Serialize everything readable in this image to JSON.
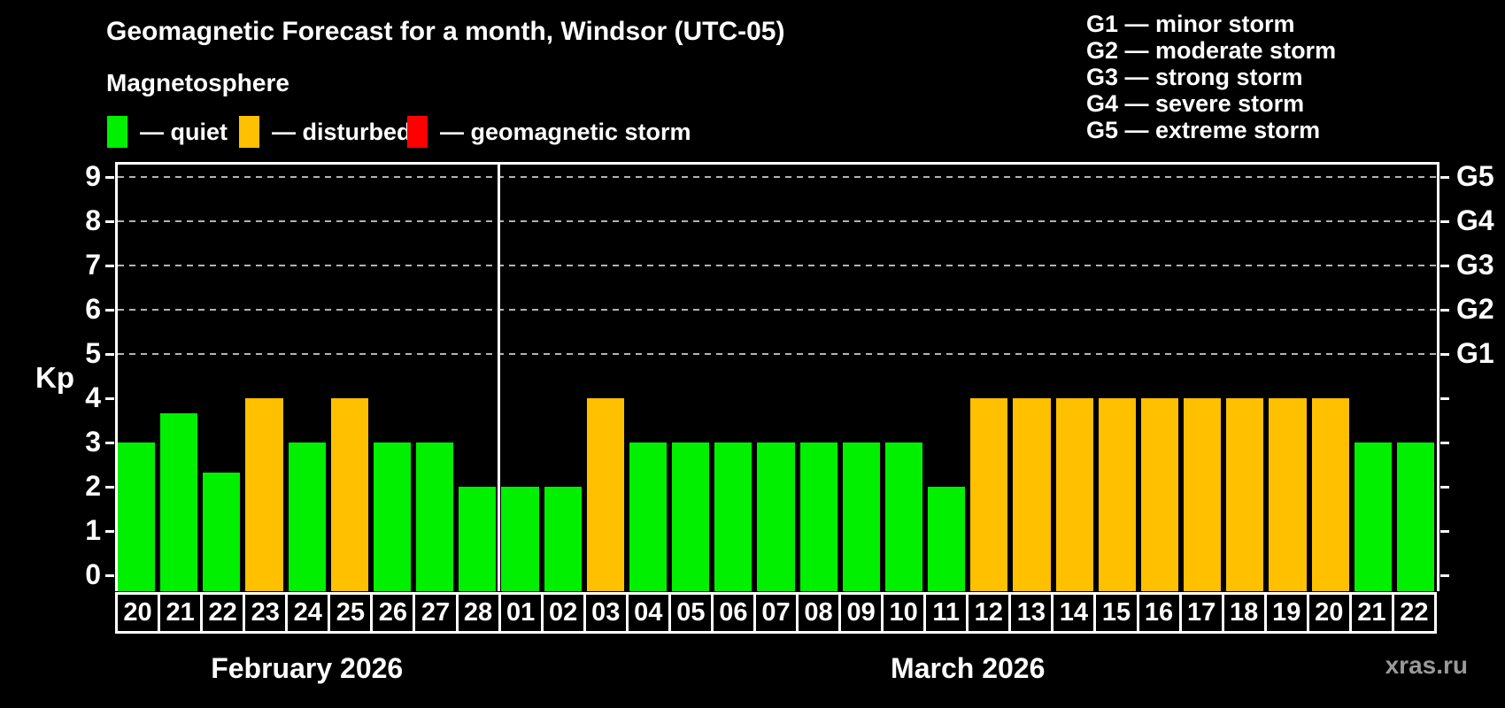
{
  "header": {
    "title": "Geomagnetic Forecast for a month, Windsor (UTC-05)",
    "subtitle": "Magnetosphere",
    "legend": [
      {
        "key": "quiet",
        "label": "— quiet",
        "color": "#00f000"
      },
      {
        "key": "disturbed",
        "label": "— disturbed",
        "color": "#ffc000"
      },
      {
        "key": "storm",
        "label": "— geomagnetic storm",
        "color": "#ff0000"
      }
    ],
    "g_scale": [
      "G1 — minor storm",
      "G2 — moderate storm",
      "G3 — strong storm",
      "G4 — severe storm",
      "G5 — extreme storm"
    ]
  },
  "chart_data": {
    "type": "bar",
    "title": "Geomagnetic Forecast for a month, Windsor (UTC-05)",
    "ylabel": "Kp",
    "ylim": [
      0,
      9
    ],
    "yticks": [
      0,
      1,
      2,
      3,
      4,
      5,
      6,
      7,
      8,
      9
    ],
    "grid_levels": [
      5,
      6,
      7,
      8,
      9
    ],
    "right_axis": [
      {
        "kp": 5,
        "label": "G1"
      },
      {
        "kp": 6,
        "label": "G2"
      },
      {
        "kp": 7,
        "label": "G3"
      },
      {
        "kp": 8,
        "label": "G4"
      },
      {
        "kp": 9,
        "label": "G5"
      }
    ],
    "months": [
      {
        "label": "February 2026",
        "days": 9
      },
      {
        "label": "March 2026",
        "days": 22
      }
    ],
    "categories": [
      "20",
      "21",
      "22",
      "23",
      "24",
      "25",
      "26",
      "27",
      "28",
      "01",
      "02",
      "03",
      "04",
      "05",
      "06",
      "07",
      "08",
      "09",
      "10",
      "11",
      "12",
      "13",
      "14",
      "15",
      "16",
      "17",
      "18",
      "19",
      "20",
      "21",
      "22"
    ],
    "values": [
      3,
      3.67,
      2.33,
      4,
      3,
      4,
      3,
      3,
      2,
      2,
      2,
      4,
      3,
      3,
      3,
      3,
      3,
      3,
      3,
      2,
      4,
      4,
      4,
      4,
      4,
      4,
      4,
      4,
      4,
      3,
      3
    ],
    "statuses": [
      "quiet",
      "quiet",
      "quiet",
      "disturbed",
      "quiet",
      "disturbed",
      "quiet",
      "quiet",
      "quiet",
      "quiet",
      "quiet",
      "disturbed",
      "quiet",
      "quiet",
      "quiet",
      "quiet",
      "quiet",
      "quiet",
      "quiet",
      "quiet",
      "disturbed",
      "disturbed",
      "disturbed",
      "disturbed",
      "disturbed",
      "disturbed",
      "disturbed",
      "disturbed",
      "disturbed",
      "quiet",
      "quiet"
    ],
    "status_colors": {
      "quiet": "#00f000",
      "disturbed": "#ffc000",
      "storm": "#ff0000"
    },
    "legend_position": "top-left",
    "grid": "dashed horizontal at G-levels only"
  },
  "footer": {
    "watermark": "xras.ru"
  }
}
